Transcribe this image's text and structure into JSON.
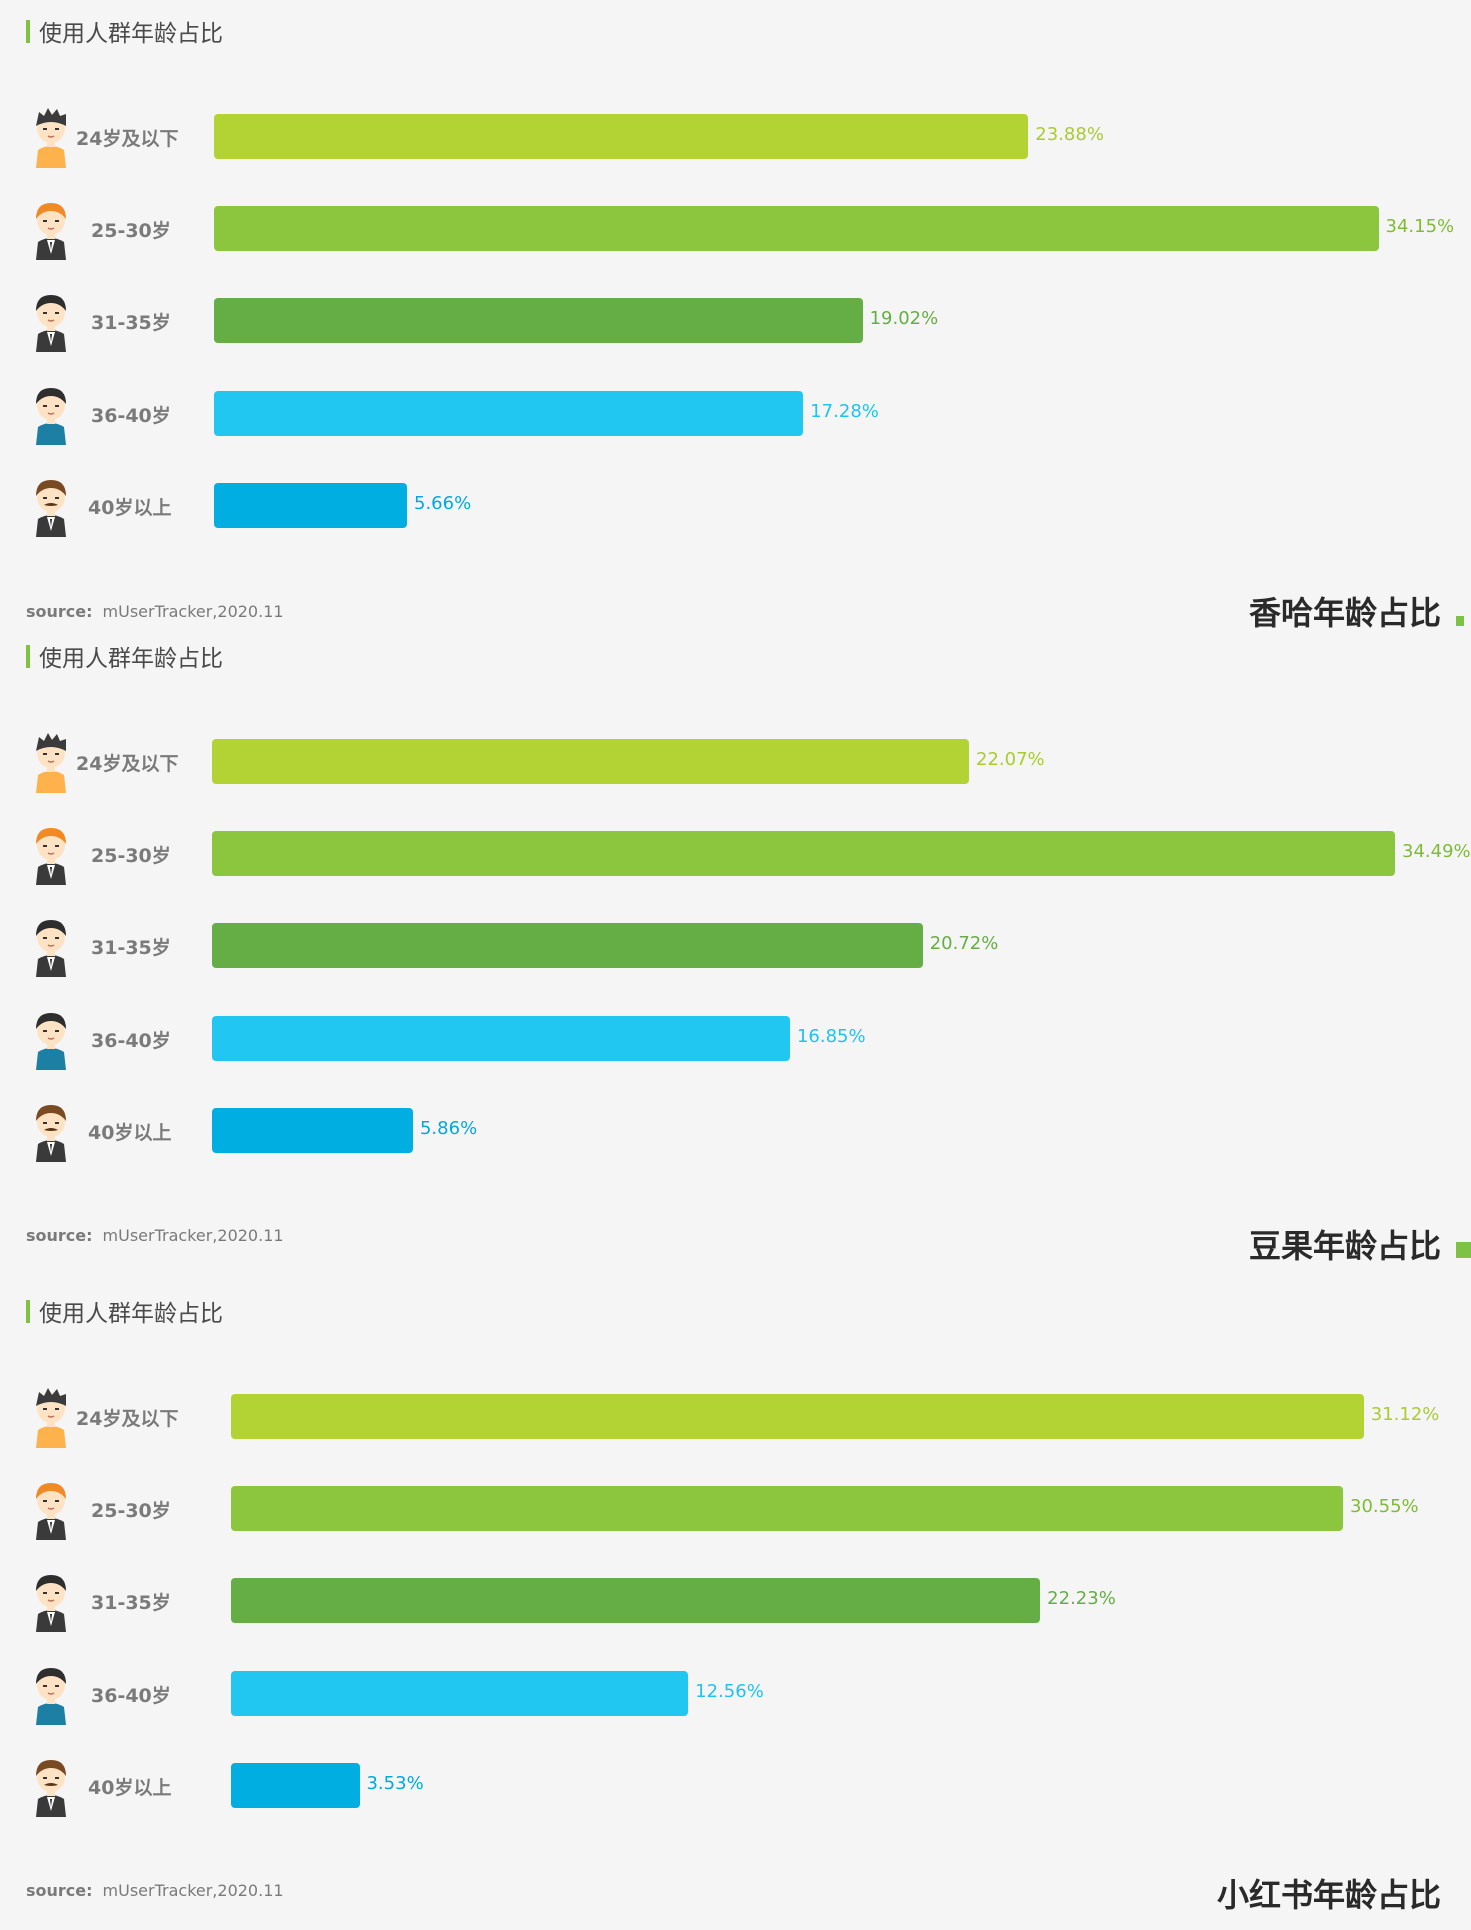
{
  "colors": {
    "header_accent": "#7dc242",
    "bar_colors": [
      "#b3d334",
      "#8cc63f",
      "#65ae45",
      "#21c7f1",
      "#00aee1"
    ],
    "value_colors": [
      "#a9cc2e",
      "#7fbc35",
      "#65ae45",
      "#1ec3ef",
      "#00a9de"
    ]
  },
  "icons": [
    "boy-yellow-shirt-icon",
    "man-orange-hair-suit-icon",
    "man-dark-suit-icon",
    "man-teal-shirt-icon",
    "man-mustache-suit-icon"
  ],
  "chart_data": [
    {
      "type": "bar",
      "orientation": "horizontal",
      "section_title": "使用人群年龄占比",
      "title": "香哈年龄占比",
      "categories": [
        "24岁及以下",
        "25-30岁",
        "31-35岁",
        "36-40岁",
        "40岁以上"
      ],
      "values": [
        23.88,
        34.15,
        19.02,
        17.28,
        5.66
      ],
      "value_labels": [
        "23.88%",
        "34.15%",
        "19.02%",
        "17.28%",
        "5.66%"
      ],
      "unit": "%",
      "source_label": "source:",
      "source_text": "mUserTracker,2020.11"
    },
    {
      "type": "bar",
      "orientation": "horizontal",
      "section_title": "使用人群年龄占比",
      "title": "豆果年龄占比",
      "categories": [
        "24岁及以下",
        "25-30岁",
        "31-35岁",
        "36-40岁",
        "40岁以上"
      ],
      "values": [
        22.07,
        34.49,
        20.72,
        16.85,
        5.86
      ],
      "value_labels": [
        "22.07%",
        "34.49%",
        "20.72%",
        "16.85%",
        "5.86%"
      ],
      "unit": "%",
      "source_label": "source:",
      "source_text": "mUserTracker,2020.11"
    },
    {
      "type": "bar",
      "orientation": "horizontal",
      "section_title": "使用人群年龄占比",
      "title": "小红书年龄占比",
      "categories": [
        "24岁及以下",
        "25-30岁",
        "31-35岁",
        "36-40岁",
        "40岁以上"
      ],
      "values": [
        31.12,
        30.55,
        22.23,
        12.56,
        3.53
      ],
      "value_labels": [
        "31.12%",
        "30.55%",
        "22.23%",
        "12.56%",
        "3.53%"
      ],
      "unit": "%",
      "source_label": "source:",
      "source_text": "mUserTracker,2020.11"
    }
  ]
}
